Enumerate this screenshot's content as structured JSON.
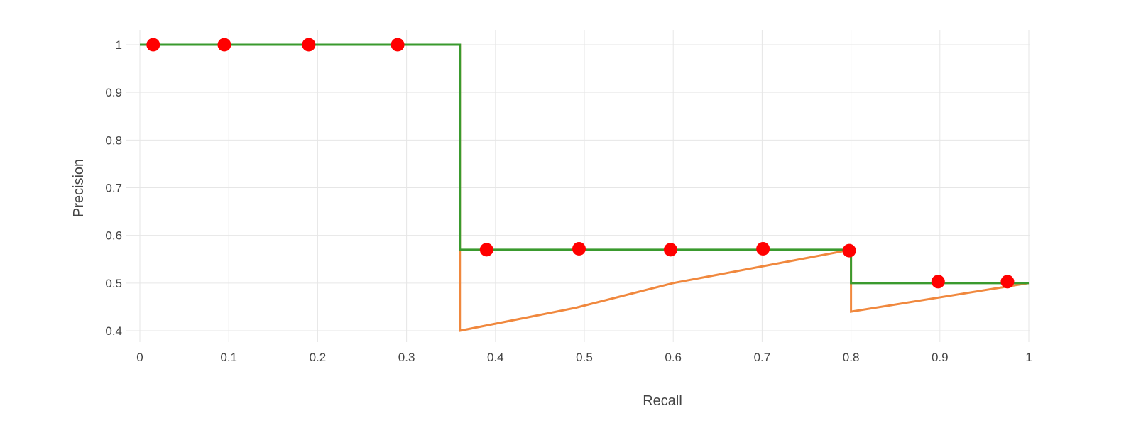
{
  "chart_data": {
    "type": "line",
    "xlabel": "Recall",
    "ylabel": "Precision",
    "xlim": [
      0,
      1
    ],
    "ylim": [
      0.4,
      1
    ],
    "grid": true,
    "x_ticks": [
      0,
      0.1,
      0.2,
      0.3,
      0.4,
      0.5,
      0.6,
      0.7,
      0.8,
      0.9,
      1
    ],
    "x_tick_labels": [
      "0",
      "0.1",
      "0.2",
      "0.3",
      "0.4",
      "0.5",
      "0.6",
      "0.7",
      "0.8",
      "0.9",
      "1"
    ],
    "y_ticks": [
      0.4,
      0.5,
      0.6,
      0.7,
      0.8,
      0.9,
      1
    ],
    "y_tick_labels": [
      "0.4",
      "0.5",
      "0.6",
      "0.7",
      "0.8",
      "0.9",
      "1"
    ],
    "series": [
      {
        "kind": "line",
        "color": "#f0883e",
        "points": [
          [
            0,
            1
          ],
          [
            0.36,
            1
          ],
          [
            0.36,
            0.57
          ],
          [
            0.36,
            0.4
          ],
          [
            0.49,
            0.448
          ],
          [
            0.6,
            0.5
          ],
          [
            0.8,
            0.57
          ],
          [
            0.8,
            0.44
          ],
          [
            1,
            0.5
          ]
        ]
      },
      {
        "kind": "line",
        "color": "#3a9a2e",
        "points": [
          [
            0,
            1
          ],
          [
            0.36,
            1
          ],
          [
            0.36,
            0.57
          ],
          [
            0.8,
            0.57
          ],
          [
            0.8,
            0.5
          ],
          [
            1,
            0.5
          ]
        ]
      },
      {
        "kind": "scatter",
        "color": "#ff0000",
        "points": [
          [
            0.015,
            1
          ],
          [
            0.095,
            1
          ],
          [
            0.19,
            1
          ],
          [
            0.29,
            1
          ],
          [
            0.39,
            0.57
          ],
          [
            0.494,
            0.572
          ],
          [
            0.597,
            0.57
          ],
          [
            0.701,
            0.572
          ],
          [
            0.798,
            0.568
          ],
          [
            0.898,
            0.503
          ],
          [
            0.976,
            0.503
          ]
        ]
      }
    ]
  }
}
